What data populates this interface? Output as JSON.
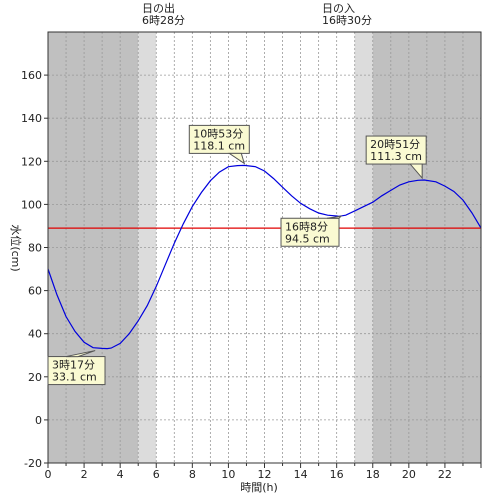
{
  "chart_data": {
    "type": "line",
    "title": "",
    "xlabel": "時間(h)",
    "ylabel": "水位(cm)",
    "xlim": [
      0,
      24
    ],
    "ylim": [
      -20,
      180
    ],
    "x_ticks": [
      0,
      2,
      4,
      6,
      8,
      10,
      12,
      14,
      16,
      18,
      20,
      22
    ],
    "y_ticks": [
      -20,
      0,
      20,
      40,
      60,
      80,
      100,
      120,
      140,
      160
    ],
    "grid": true,
    "sunrise": {
      "label": "日の出",
      "time": "6時28分",
      "hour": 6.47
    },
    "sunset": {
      "label": "日の入",
      "time": "16時30分",
      "hour": 16.5
    },
    "twilight": {
      "morning": [
        5.0,
        6.0
      ],
      "evening": [
        17.0,
        18.0
      ]
    },
    "reference_line": {
      "value": 89,
      "color": "#e00000"
    },
    "series": [
      {
        "color": "#0000dd",
        "x": [
          0,
          0.5,
          1,
          1.5,
          2,
          2.5,
          3,
          3.28,
          3.5,
          4,
          4.5,
          5,
          5.5,
          6,
          6.5,
          7,
          7.5,
          8,
          8.5,
          9,
          9.5,
          10,
          10.5,
          10.88,
          11.5,
          12,
          12.5,
          13,
          13.5,
          14,
          14.5,
          15,
          15.5,
          16,
          16.13,
          16.5,
          17,
          17.5,
          18,
          18.5,
          19,
          19.5,
          20,
          20.5,
          20.85,
          21.5,
          22,
          22.5,
          23,
          23.5,
          24
        ],
        "values": [
          70,
          58,
          48,
          41,
          36,
          33.5,
          33.2,
          33.1,
          33.3,
          35.5,
          40,
          46,
          53,
          62,
          72,
          82,
          91,
          99,
          105.5,
          111,
          115,
          117.5,
          118,
          118.1,
          117.5,
          115.5,
          112,
          108,
          104,
          100.5,
          98,
          96,
          95,
          94.6,
          94.5,
          95,
          97,
          99,
          101,
          104,
          106.5,
          109,
          110.5,
          111.2,
          111.3,
          110.5,
          108.5,
          106,
          102,
          96,
          89
        ]
      }
    ],
    "annotations": [
      {
        "time": "3時17分",
        "level": "33.1 cm",
        "x": 3.28,
        "y": 33.1
      },
      {
        "time": "10時53分",
        "level": "118.1 cm",
        "x": 10.88,
        "y": 118.1
      },
      {
        "time": "16時8分",
        "level": "94.5 cm",
        "x": 16.13,
        "y": 94.5
      },
      {
        "time": "20時51分",
        "level": "111.3 cm",
        "x": 20.85,
        "y": 111.3
      }
    ]
  }
}
